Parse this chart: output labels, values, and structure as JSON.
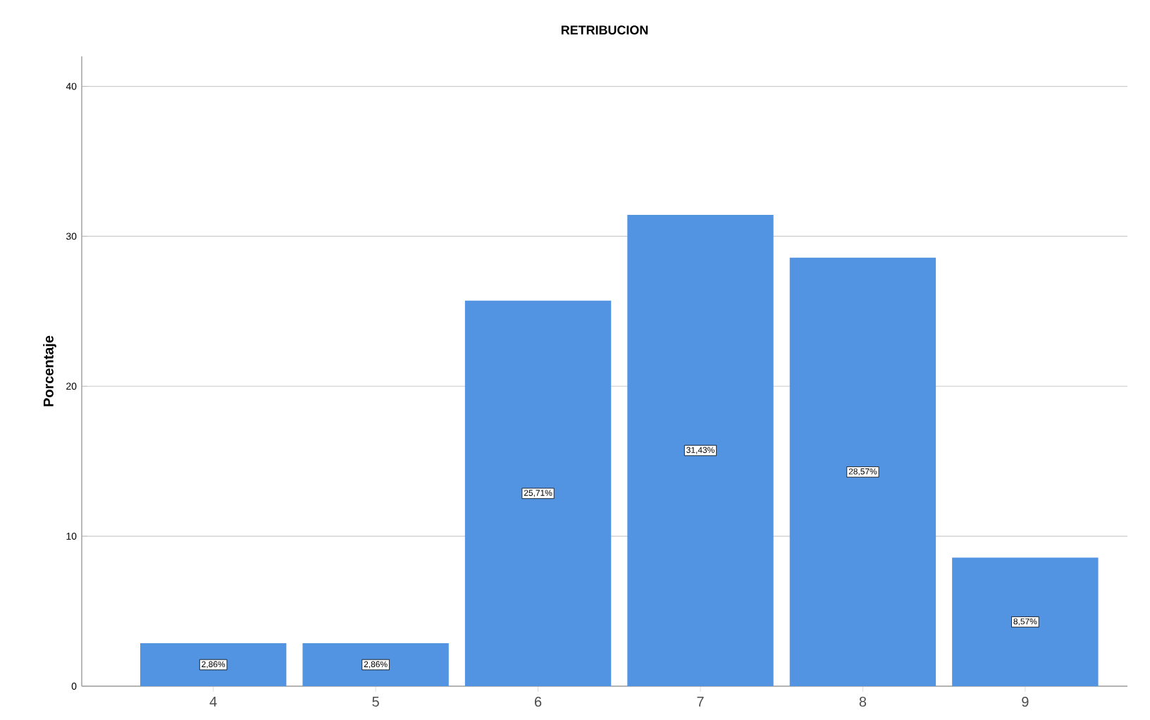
{
  "chart_data": {
    "type": "bar",
    "title": "RETRIBUCION",
    "ylabel": "Porcentaje",
    "categories": [
      "4",
      "5",
      "6",
      "7",
      "8",
      "9"
    ],
    "values": [
      2.86,
      2.86,
      25.71,
      31.43,
      28.57,
      8.57
    ],
    "value_labels": [
      "2,86%",
      "2,86%",
      "25,71%",
      "31,43%",
      "28,57%",
      "8,57%"
    ],
    "color": "#5294e2",
    "ylim": [
      0,
      42
    ],
    "yticks": [
      0,
      10,
      20,
      30,
      40
    ],
    "grid": "y"
  }
}
